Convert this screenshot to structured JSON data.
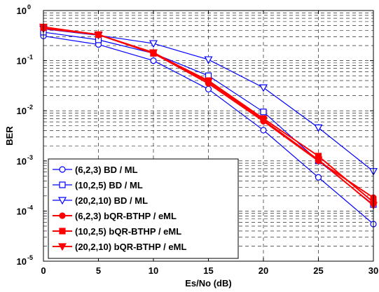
{
  "chart_data": {
    "type": "line",
    "xlabel": "Es/No (dB)",
    "ylabel": "BER",
    "x": [
      0,
      5,
      10,
      15,
      20,
      25,
      30
    ],
    "xlim": [
      0,
      30
    ],
    "ylim": [
      1e-05,
      1
    ],
    "yscale": "log",
    "grid": true,
    "legend_position": "bottom-left",
    "x_ticks": [
      "0",
      "5",
      "10",
      "15",
      "20",
      "25",
      "30"
    ],
    "y_ticks": [
      {
        "base": "10",
        "exp": "0",
        "value": 1
      },
      {
        "base": "10",
        "exp": "-1",
        "value": 0.1
      },
      {
        "base": "10",
        "exp": "-2",
        "value": 0.01
      },
      {
        "base": "10",
        "exp": "-3",
        "value": 0.001
      },
      {
        "base": "10",
        "exp": "-4",
        "value": 0.0001
      },
      {
        "base": "10",
        "exp": "-5",
        "value": 1e-05
      }
    ],
    "series": [
      {
        "name": "(6,2,3) BD / ML",
        "color": "#0000ff",
        "marker": "circle-open",
        "values": [
          0.31,
          0.21,
          0.1,
          0.027,
          0.0041,
          0.00047,
          5.5e-05
        ]
      },
      {
        "name": "(10,2,5) BD / ML",
        "color": "#0000ff",
        "marker": "square-open",
        "values": [
          0.37,
          0.26,
          0.14,
          0.05,
          0.0095,
          0.001,
          0.000135
        ]
      },
      {
        "name": "(20,2,10) BD / ML",
        "color": "#0000ff",
        "marker": "triangle-down-open",
        "values": [
          0.43,
          0.32,
          0.22,
          0.105,
          0.029,
          0.0046,
          0.00062
        ]
      },
      {
        "name": "(6,2,3) bQR-BTHP / eML",
        "color": "#ff0000",
        "marker": "circle-filled",
        "values": [
          0.44,
          0.33,
          0.14,
          0.035,
          0.0062,
          0.001,
          0.000185
        ]
      },
      {
        "name": "(10,2,5) bQR-BTHP / eML",
        "color": "#ff0000",
        "marker": "square-filled",
        "values": [
          0.46,
          0.33,
          0.14,
          0.04,
          0.007,
          0.00125,
          0.00015
        ]
      },
      {
        "name": "(20,2,10) bQR-BTHP / eML",
        "color": "#ff0000",
        "marker": "triangle-down-filled",
        "values": [
          0.47,
          0.33,
          0.145,
          0.038,
          0.0065,
          0.00105,
          0.00013
        ]
      }
    ]
  }
}
